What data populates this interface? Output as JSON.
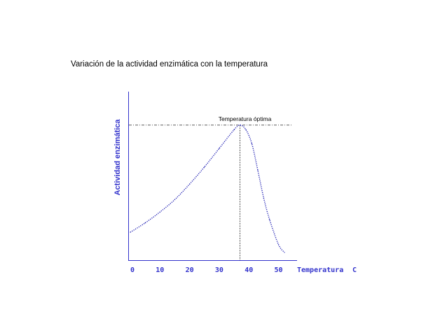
{
  "chart_data": {
    "type": "line",
    "title": "Variación de la actividad enzimática con la temperatura",
    "xlabel": "Temperatura",
    "xunit": "C",
    "ylabel": "Actividad enzimática",
    "xlim": [
      0,
      52
    ],
    "ylim": [
      0,
      100
    ],
    "xticks": [
      "0",
      "10",
      "20",
      "30",
      "40",
      "50"
    ],
    "grid": false,
    "series": [
      {
        "x": [
          0,
          5,
          10,
          15,
          20,
          25,
          30,
          35,
          37,
          39,
          41,
          43,
          45,
          47,
          50,
          52
        ],
        "y": [
          18,
          24,
          31,
          39,
          49,
          60,
          72,
          84,
          87,
          84,
          75,
          58,
          40,
          26,
          10,
          5
        ]
      }
    ],
    "annotations": [
      {
        "text": "Temperatura óptima",
        "x": 37,
        "y": 87
      }
    ],
    "colors": {
      "axis": "#3333cc",
      "curve": "#1f1fb3",
      "text": "#000000"
    }
  }
}
